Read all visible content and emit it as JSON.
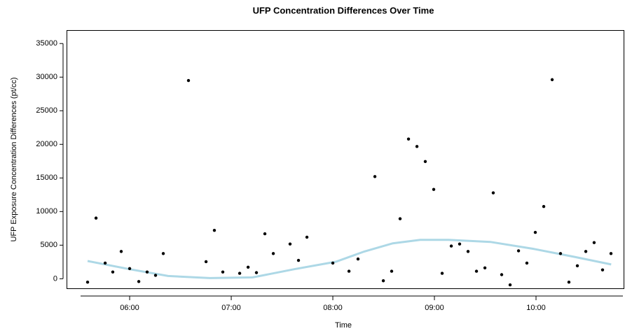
{
  "chart_data": {
    "type": "scatter",
    "title": "UFP Concentration Differences Over Time",
    "xlabel": "Time",
    "ylabel": "UFP Exposure Concentration Differences (pt/cc)",
    "xlim": [
      5.379,
      10.869
    ],
    "ylim": [
      -1420,
      37000
    ],
    "xticks": [
      {
        "value": 6,
        "label": "06:00"
      },
      {
        "value": 7,
        "label": "07:00"
      },
      {
        "value": 8,
        "label": "08:00"
      },
      {
        "value": 9,
        "label": "09:00"
      },
      {
        "value": 10,
        "label": "10:00"
      }
    ],
    "yticks": [
      0,
      5000,
      10000,
      15000,
      20000,
      25000,
      30000,
      35000
    ],
    "points": {
      "color": "#000000",
      "x": [
        5.586,
        5.669,
        5.759,
        5.834,
        5.917,
        6.0,
        6.09,
        6.172,
        6.255,
        6.331,
        6.579,
        6.752,
        6.834,
        6.917,
        7.083,
        7.166,
        7.248,
        7.331,
        7.414,
        7.579,
        7.662,
        7.745,
        8.0,
        8.159,
        8.248,
        8.414,
        8.497,
        8.579,
        8.662,
        8.745,
        8.828,
        8.91,
        8.993,
        9.076,
        9.166,
        9.248,
        9.331,
        9.414,
        9.497,
        9.579,
        9.662,
        9.745,
        9.828,
        9.91,
        9.993,
        10.076,
        10.159,
        10.241,
        10.324,
        10.407,
        10.49,
        10.572,
        10.655,
        10.738
      ],
      "values": [
        -500,
        9030,
        2330,
        1010,
        4060,
        1520,
        -410,
        1010,
        510,
        3750,
        29500,
        2540,
        7200,
        1010,
        810,
        1720,
        910,
        6690,
        3750,
        5170,
        2740,
        6190,
        2330,
        1120,
        2940,
        15210,
        -300,
        1120,
        8930,
        20790,
        19680,
        17450,
        13290,
        810,
        4870,
        5170,
        4060,
        1120,
        1620,
        12780,
        610,
        -910,
        4160,
        2330,
        6900,
        10750,
        29620,
        3750,
        -500,
        1930,
        4060,
        5380,
        1320,
        3750
      ]
    },
    "smooth": {
      "color": "#add8e6",
      "x": [
        5.586,
        6.0,
        6.379,
        6.79,
        7.21,
        7.62,
        8.03,
        8.31,
        8.59,
        8.86,
        9.14,
        9.55,
        9.97,
        10.38,
        10.74
      ],
      "values": [
        2640,
        1420,
        410,
        100,
        200,
        1420,
        2540,
        4060,
        5270,
        5780,
        5780,
        5480,
        4460,
        3250,
        2130
      ]
    }
  }
}
